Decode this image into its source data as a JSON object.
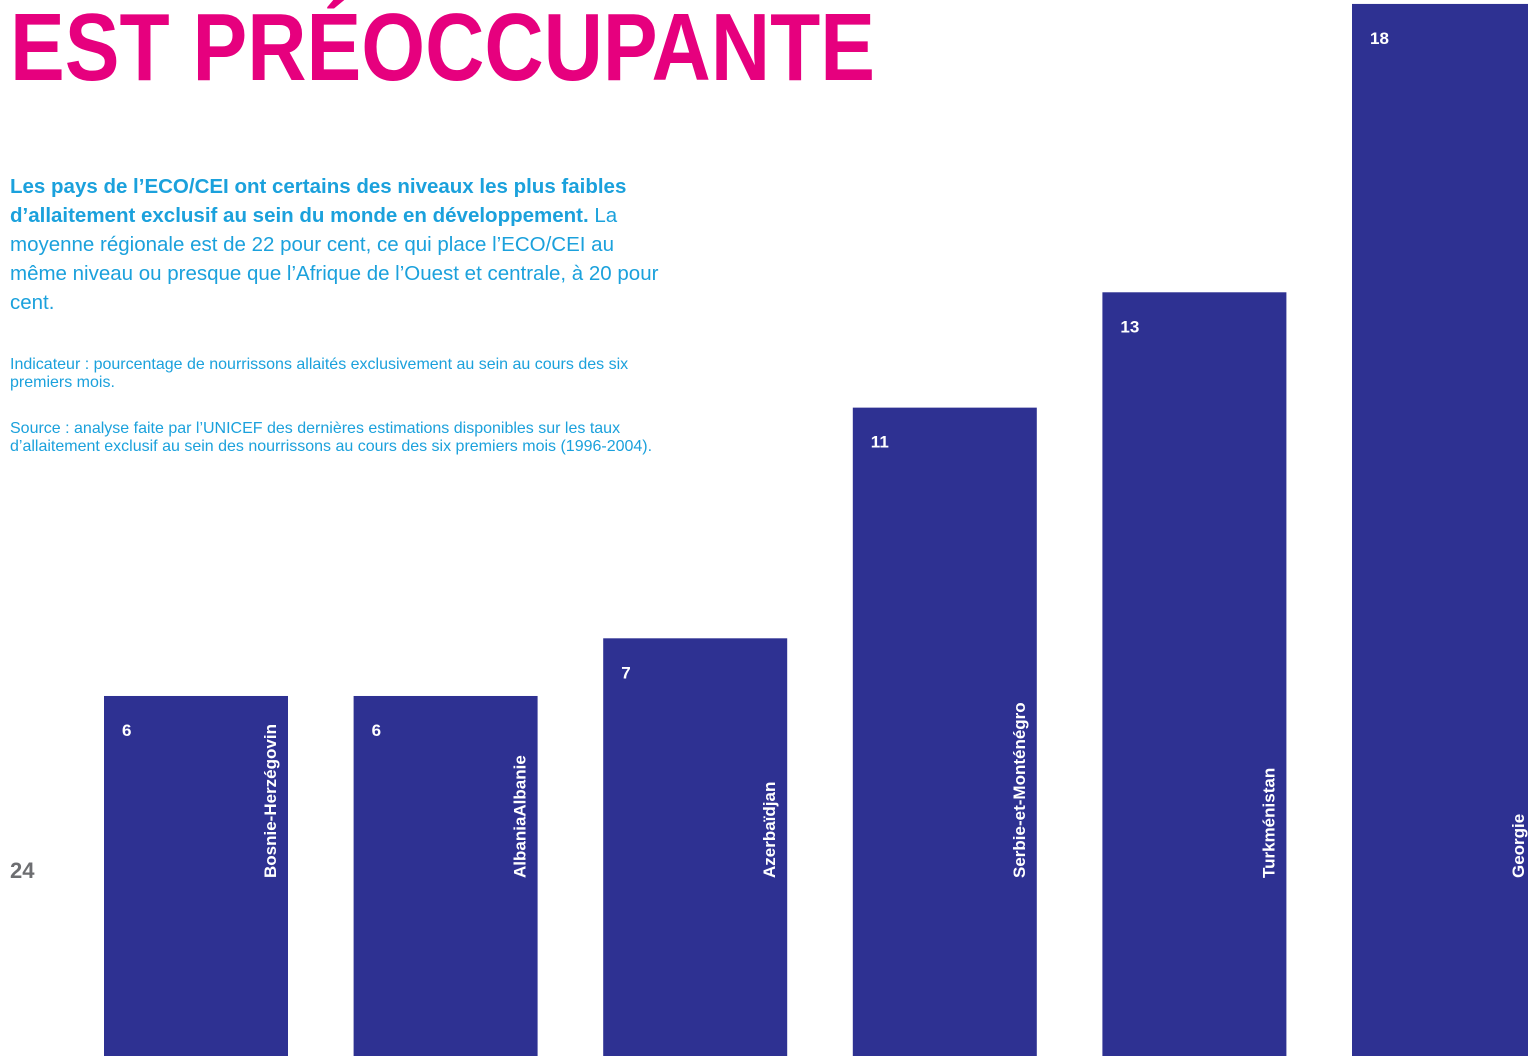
{
  "title": "EST PRÉOCCUPANTE",
  "intro": {
    "bold": "Les pays de l’ECO/CEI ont certains des niveaux les plus faibles d’allaitement exclusif au sein du monde en développement.",
    "text": "La moyenne régionale est de 22 pour cent, ce qui place l’ECO/CEI au même niveau ou presque que l’Afrique de l’Ouest et centrale, à 20 pour cent."
  },
  "indicator": "Indicateur : pourcentage de nourrissons allaités exclusivement au sein au cours des six premiers mois.",
  "source": "Source : analyse faite par l’UNICEF des dernières estimations disponibles sur les taux d’allaitement exclusif au sein des nourrissons au cours des six premiers mois (1996-2004).",
  "page_number": "24",
  "chart_data": {
    "type": "bar",
    "categories": [
      "Bosnie-Herzégovin",
      "AlbaniaAlbanie",
      "Azerbaïdjan",
      "Serbie-et-Monténégro",
      "Turkménistan",
      "Georgie"
    ],
    "values": [
      6,
      6,
      7,
      11,
      13,
      18
    ],
    "color": "#2e3192"
  }
}
